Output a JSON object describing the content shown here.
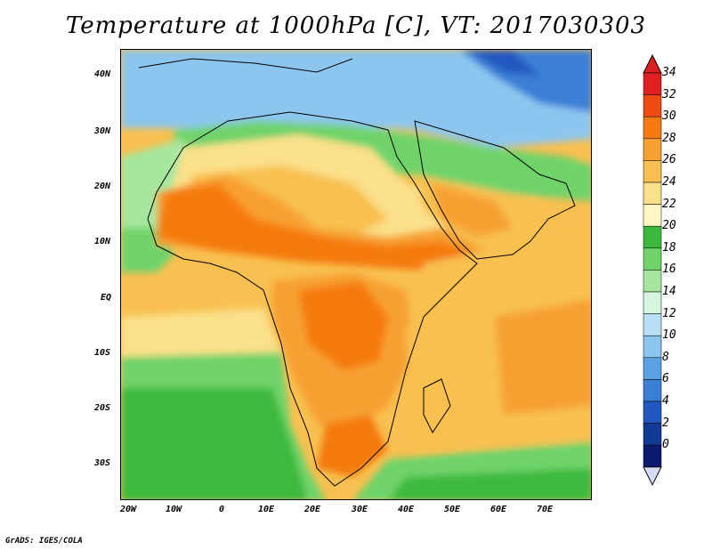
{
  "title": "Temperature at 1000hPa [C], VT: 2017030303",
  "credit": "GrADS: IGES/COLA",
  "lat_labels": [
    "40N",
    "30N",
    "20N",
    "10N",
    "EQ",
    "10S",
    "20S",
    "30S"
  ],
  "lon_labels": [
    "20W",
    "10W",
    "0",
    "10E",
    "20E",
    "30E",
    "40E",
    "50E",
    "60E",
    "70E"
  ],
  "colorbar": {
    "labels": [
      "34",
      "32",
      "30",
      "28",
      "26",
      "24",
      "22",
      "20",
      "18",
      "16",
      "14",
      "12",
      "10",
      "8",
      "6",
      "4",
      "2",
      "0"
    ],
    "colors": [
      "#e02020",
      "#f04a10",
      "#f57a10",
      "#f7a030",
      "#f8c050",
      "#fbe08a",
      "#fdf6c2",
      "#3cb93c",
      "#6fd36a",
      "#a6e79f",
      "#d6f5df",
      "#b8dff6",
      "#8cc6ef",
      "#5aa2e2",
      "#3a7fd6",
      "#2058c0",
      "#103a96",
      "#0a1a6e"
    ],
    "top_arrow": "#e02020",
    "bottom_arrow": "#d6dcf7"
  }
}
